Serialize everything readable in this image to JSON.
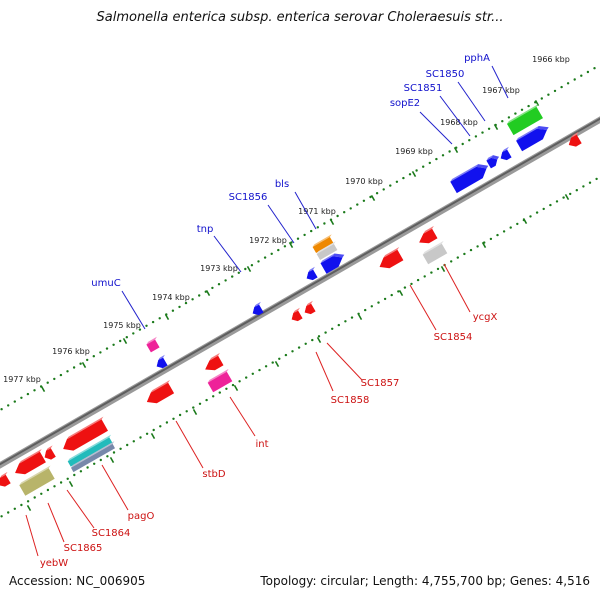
{
  "title": "Salmonella enterica subsp. enterica serovar Choleraesuis str...",
  "accession": "Accession: NC_006905",
  "topology": "Topology: circular; Length: 4,755,700 bp; Genes: 4,516",
  "colors": {
    "backbone": "#7a7a7a",
    "ticks": "#1b7a1b",
    "label_top": "#1111cc",
    "label_bottom": "#cc1111",
    "leader_top": "#2222cc",
    "leader_bottom": "#dd2222"
  },
  "kbp_labels": [
    "1966 kbp",
    "1967 kbp",
    "1968 kbp",
    "1969 kbp",
    "1970 kbp",
    "1971 kbp",
    "1972 kbp",
    "1973 kbp",
    "1974 kbp",
    "1975 kbp",
    "1976 kbp",
    "1977 kbp"
  ],
  "top_genes": [
    {
      "name": "pphA",
      "color": "#1111cc"
    },
    {
      "name": "SC1850",
      "color": "#1111cc"
    },
    {
      "name": "SC1851",
      "color": "#1111cc"
    },
    {
      "name": "sopE2",
      "color": "#1111cc"
    },
    {
      "name": "bls",
      "color": "#1111cc"
    },
    {
      "name": "SC1856",
      "color": "#1111cc"
    },
    {
      "name": "tnp",
      "color": "#1111cc"
    },
    {
      "name": "umuC",
      "color": "#1111cc"
    }
  ],
  "bottom_genes": [
    {
      "name": "ycgX",
      "color": "#cc1111"
    },
    {
      "name": "SC1854",
      "color": "#cc1111"
    },
    {
      "name": "SC1857",
      "color": "#cc1111"
    },
    {
      "name": "SC1858",
      "color": "#cc1111"
    },
    {
      "name": "int",
      "color": "#cc1111"
    },
    {
      "name": "stbD",
      "color": "#cc1111"
    },
    {
      "name": "pagO",
      "color": "#cc1111"
    },
    {
      "name": "SC1864",
      "color": "#cc1111"
    },
    {
      "name": "SC1865",
      "color": "#cc1111"
    },
    {
      "name": "yebW",
      "color": "#cc1111"
    }
  ],
  "feature_colors": {
    "green": "#22cc22",
    "blue": "#1111ee",
    "orange": "#ee8800",
    "gray": "#c8c8c8",
    "magenta": "#ee2299",
    "red": "#ee1111",
    "cyan": "#22bbbb",
    "olive": "#b8b46a",
    "steel": "#7788aa"
  }
}
